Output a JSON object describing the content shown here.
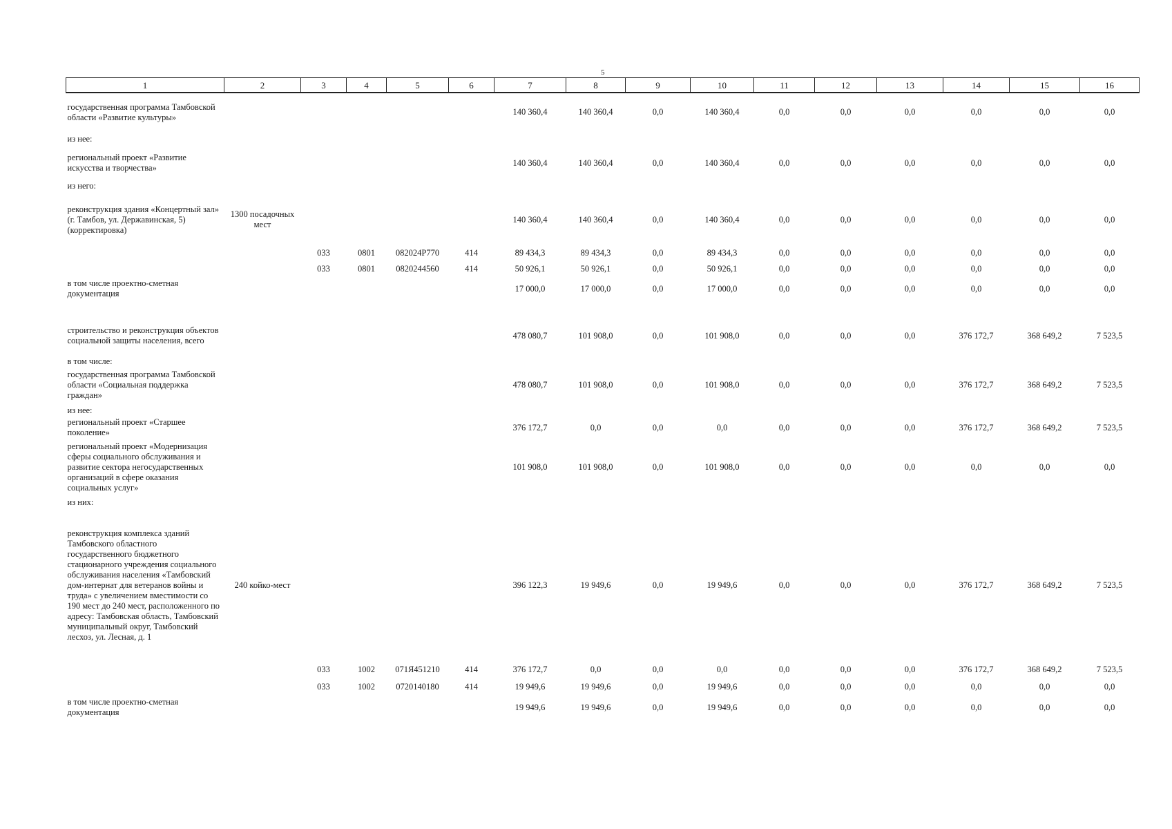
{
  "page_number": "5",
  "columns": [
    "1",
    "2",
    "3",
    "4",
    "5",
    "6",
    "7",
    "8",
    "9",
    "10",
    "11",
    "12",
    "13",
    "14",
    "15",
    "16"
  ],
  "rows": [
    {
      "kind": "row",
      "h": 56,
      "cells": [
        "государственная программа Тамбовской области «Развитие культуры»",
        "",
        "",
        "",
        "",
        "",
        "140 360,4",
        "140 360,4",
        "0,0",
        "140 360,4",
        "0,0",
        "0,0",
        "0,0",
        "0,0",
        "0,0",
        "0,0"
      ]
    },
    {
      "kind": "sub",
      "h": 24,
      "cells": [
        "из нее:",
        "",
        "",
        "",
        "",
        "",
        "",
        "",
        "",
        "",
        "",
        "",
        "",
        "",
        "",
        ""
      ]
    },
    {
      "kind": "row",
      "h": 44,
      "cells": [
        "региональный проект «Развитие искусства и творчества»",
        "",
        "",
        "",
        "",
        "",
        "140 360,4",
        "140 360,4",
        "0,0",
        "140 360,4",
        "0,0",
        "0,0",
        "0,0",
        "0,0",
        "0,0",
        "0,0"
      ]
    },
    {
      "kind": "sub",
      "h": 24,
      "cells": [
        "из него:",
        "",
        "",
        "",
        "",
        "",
        "",
        "",
        "",
        "",
        "",
        "",
        "",
        "",
        "",
        ""
      ]
    },
    {
      "kind": "row",
      "h": 72,
      "cells": [
        "реконструкция здания «Концертный зал» (г. Тамбов, ул. Державинская, 5) (корректировка)",
        "1300 посадочных мест",
        "",
        "",
        "",
        "",
        "140 360,4",
        "140 360,4",
        "0,0",
        "140 360,4",
        "0,0",
        "0,0",
        "0,0",
        "0,0",
        "0,0",
        "0,0"
      ]
    },
    {
      "kind": "row",
      "h": 24,
      "cells": [
        "",
        "",
        "033",
        "0801",
        "082024Р770",
        "414",
        "89 434,3",
        "89 434,3",
        "0,0",
        "89 434,3",
        "0,0",
        "0,0",
        "0,0",
        "0,0",
        "0,0",
        "0,0"
      ]
    },
    {
      "kind": "row",
      "h": 22,
      "cells": [
        "",
        "",
        "033",
        "0801",
        "0820244560",
        "414",
        "50 926,1",
        "50 926,1",
        "0,0",
        "50 926,1",
        "0,0",
        "0,0",
        "0,0",
        "0,0",
        "0,0",
        "0,0"
      ]
    },
    {
      "kind": "row",
      "h": 36,
      "cells": [
        "в том числе проектно-сметная документация",
        "",
        "",
        "",
        "",
        "",
        "17 000,0",
        "17 000,0",
        "0,0",
        "17 000,0",
        "0,0",
        "0,0",
        "0,0",
        "0,0",
        "0,0",
        "0,0"
      ]
    },
    {
      "kind": "gap",
      "h": 24,
      "cells": [
        "",
        "",
        "",
        "",
        "",
        "",
        "",
        "",
        "",
        "",
        "",
        "",
        "",
        "",
        "",
        ""
      ]
    },
    {
      "kind": "row",
      "h": 52,
      "cells": [
        "строительство и реконструкция объектов социальной защиты населения, всего",
        "",
        "",
        "",
        "",
        "",
        "478 080,7",
        "101 908,0",
        "0,0",
        "101 908,0",
        "0,0",
        "0,0",
        "0,0",
        "376 172,7",
        "368 649,2",
        "7 523,5"
      ]
    },
    {
      "kind": "sub",
      "h": 18,
      "cells": [
        "в том числе:",
        "",
        "",
        "",
        "",
        "",
        "",
        "",
        "",
        "",
        "",
        "",
        "",
        "",
        "",
        ""
      ]
    },
    {
      "kind": "row",
      "h": 52,
      "cells": [
        "государственная программа Тамбовской области «Социальная поддержка граждан»",
        "",
        "",
        "",
        "",
        "",
        "478 080,7",
        "101 908,0",
        "0,0",
        "101 908,0",
        "0,0",
        "0,0",
        "0,0",
        "376 172,7",
        "368 649,2",
        "7 523,5"
      ]
    },
    {
      "kind": "sub",
      "h": 18,
      "cells": [
        "из нее:",
        "",
        "",
        "",
        "",
        "",
        "",
        "",
        "",
        "",
        "",
        "",
        "",
        "",
        "",
        ""
      ]
    },
    {
      "kind": "row",
      "h": 34,
      "cells": [
        "региональный проект «Старшее поколение»",
        "",
        "",
        "",
        "",
        "",
        "376 172,7",
        "0,0",
        "0,0",
        "0,0",
        "0,0",
        "0,0",
        "0,0",
        "376 172,7",
        "368 649,2",
        "7 523,5"
      ]
    },
    {
      "kind": "row",
      "h": 80,
      "cells": [
        "региональный проект «Модернизация сферы социального обслуживания и развитие сектора негосударственных организаций в сфере оказания социальных услуг»",
        "",
        "",
        "",
        "",
        "",
        "101 908,0",
        "101 908,0",
        "0,0",
        "101 908,0",
        "0,0",
        "0,0",
        "0,0",
        "0,0",
        "0,0",
        "0,0"
      ]
    },
    {
      "kind": "sub",
      "h": 22,
      "cells": [
        "из них:",
        "",
        "",
        "",
        "",
        "",
        "",
        "",
        "",
        "",
        "",
        "",
        "",
        "",
        "",
        ""
      ]
    },
    {
      "kind": "row",
      "h": 218,
      "cells": [
        "реконструкция комплекса зданий Тамбовского областного государственного бюджетного стационарного учреждения социального обслуживания населения «Тамбовский дом-интернат для ветеранов войны и труда» с увеличением вместимости со 190 мест до 240 мест, расположенного по адресу: Тамбовская область, Тамбовский муниципальный округ, Тамбовский лесхоз, ул. Лесная, д. 1",
        "240 койко-мест",
        "",
        "",
        "",
        "",
        "396 122,3",
        "19 949,6",
        "0,0",
        "19 949,6",
        "0,0",
        "0,0",
        "0,0",
        "376 172,7",
        "368 649,2",
        "7 523,5"
      ]
    },
    {
      "kind": "row",
      "h": 26,
      "cells": [
        "",
        "",
        "033",
        "1002",
        "071Я451210",
        "414",
        "376 172,7",
        "0,0",
        "0,0",
        "0,0",
        "0,0",
        "0,0",
        "0,0",
        "376 172,7",
        "368 649,2",
        "7 523,5"
      ]
    },
    {
      "kind": "row",
      "h": 24,
      "cells": [
        "",
        "",
        "033",
        "1002",
        "0720140180",
        "414",
        "19 949,6",
        "19 949,6",
        "0,0",
        "19 949,6",
        "0,0",
        "0,0",
        "0,0",
        "0,0",
        "0,0",
        "0,0"
      ]
    },
    {
      "kind": "row",
      "h": 36,
      "cells": [
        "в том числе проектно-сметная документация",
        "",
        "",
        "",
        "",
        "",
        "19 949,6",
        "19 949,6",
        "0,0",
        "19 949,6",
        "0,0",
        "0,0",
        "0,0",
        "0,0",
        "0,0",
        "0,0"
      ]
    }
  ]
}
